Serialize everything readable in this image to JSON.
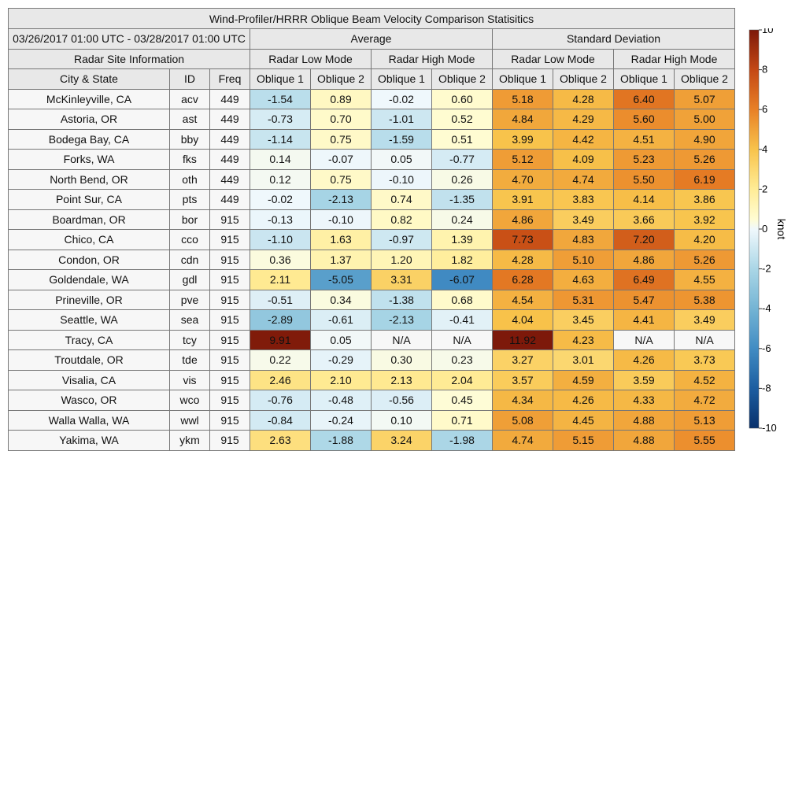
{
  "chart_data": {
    "type": "table",
    "title": "Wind-Profiler/HRRR Oblique Beam Velocity Comparison Statisitics",
    "date_range": "03/26/2017 01:00 UTC - 03/28/2017 01:00 UTC",
    "site_group_label": "Radar Site Information",
    "groups": [
      "Average",
      "Standard Deviation"
    ],
    "modes": [
      "Radar Low Mode",
      "Radar High Mode"
    ],
    "info_columns": [
      "City & State",
      "ID",
      "Freq"
    ],
    "beam_columns": [
      "Oblique 1",
      "Oblique 2"
    ],
    "colorbar": {
      "label": "knot",
      "min": -10,
      "max": 10,
      "ticks": [
        10,
        8,
        6,
        4,
        2,
        0,
        -2,
        -4,
        -6,
        -8,
        -10
      ]
    },
    "rows": [
      {
        "city": "McKinleyville, CA",
        "id": "acv",
        "freq": "449",
        "values": [
          "-1.54",
          "0.89",
          "-0.02",
          "0.60",
          "5.18",
          "4.28",
          "6.40",
          "5.07"
        ]
      },
      {
        "city": "Astoria, OR",
        "id": "ast",
        "freq": "449",
        "values": [
          "-0.73",
          "0.70",
          "-1.01",
          "0.52",
          "4.84",
          "4.29",
          "5.60",
          "5.00"
        ]
      },
      {
        "city": "Bodega Bay, CA",
        "id": "bby",
        "freq": "449",
        "values": [
          "-1.14",
          "0.75",
          "-1.59",
          "0.51",
          "3.99",
          "4.42",
          "4.51",
          "4.90"
        ]
      },
      {
        "city": "Forks, WA",
        "id": "fks",
        "freq": "449",
        "values": [
          "0.14",
          "-0.07",
          "0.05",
          "-0.77",
          "5.12",
          "4.09",
          "5.23",
          "5.26"
        ]
      },
      {
        "city": "North Bend, OR",
        "id": "oth",
        "freq": "449",
        "values": [
          "0.12",
          "0.75",
          "-0.10",
          "0.26",
          "4.70",
          "4.74",
          "5.50",
          "6.19"
        ]
      },
      {
        "city": "Point Sur, CA",
        "id": "pts",
        "freq": "449",
        "values": [
          "-0.02",
          "-2.13",
          "0.74",
          "-1.35",
          "3.91",
          "3.83",
          "4.14",
          "3.86"
        ]
      },
      {
        "city": "Boardman, OR",
        "id": "bor",
        "freq": "915",
        "values": [
          "-0.13",
          "-0.10",
          "0.82",
          "0.24",
          "4.86",
          "3.49",
          "3.66",
          "3.92"
        ]
      },
      {
        "city": "Chico, CA",
        "id": "cco",
        "freq": "915",
        "values": [
          "-1.10",
          "1.63",
          "-0.97",
          "1.39",
          "7.73",
          "4.83",
          "7.20",
          "4.20"
        ]
      },
      {
        "city": "Condon, OR",
        "id": "cdn",
        "freq": "915",
        "values": [
          "0.36",
          "1.37",
          "1.20",
          "1.82",
          "4.28",
          "5.10",
          "4.86",
          "5.26"
        ]
      },
      {
        "city": "Goldendale, WA",
        "id": "gdl",
        "freq": "915",
        "values": [
          "2.11",
          "-5.05",
          "3.31",
          "-6.07",
          "6.28",
          "4.63",
          "6.49",
          "4.55"
        ]
      },
      {
        "city": "Prineville, OR",
        "id": "pve",
        "freq": "915",
        "values": [
          "-0.51",
          "0.34",
          "-1.38",
          "0.68",
          "4.54",
          "5.31",
          "5.47",
          "5.38"
        ]
      },
      {
        "city": "Seattle, WA",
        "id": "sea",
        "freq": "915",
        "values": [
          "-2.89",
          "-0.61",
          "-2.13",
          "-0.41",
          "4.04",
          "3.45",
          "4.41",
          "3.49"
        ]
      },
      {
        "city": "Tracy, CA",
        "id": "tcy",
        "freq": "915",
        "values": [
          "9.91",
          "0.05",
          "N/A",
          "N/A",
          "11.92",
          "4.23",
          "N/A",
          "N/A"
        ]
      },
      {
        "city": "Troutdale, OR",
        "id": "tde",
        "freq": "915",
        "values": [
          "0.22",
          "-0.29",
          "0.30",
          "0.23",
          "3.27",
          "3.01",
          "4.26",
          "3.73"
        ]
      },
      {
        "city": "Visalia, CA",
        "id": "vis",
        "freq": "915",
        "values": [
          "2.46",
          "2.10",
          "2.13",
          "2.04",
          "3.57",
          "4.59",
          "3.59",
          "4.52"
        ]
      },
      {
        "city": "Wasco, OR",
        "id": "wco",
        "freq": "915",
        "values": [
          "-0.76",
          "-0.48",
          "-0.56",
          "0.45",
          "4.34",
          "4.26",
          "4.33",
          "4.72"
        ]
      },
      {
        "city": "Walla Walla, WA",
        "id": "wwl",
        "freq": "915",
        "values": [
          "-0.84",
          "-0.24",
          "0.10",
          "0.71",
          "5.08",
          "4.45",
          "4.88",
          "5.13"
        ]
      },
      {
        "city": "Yakima, WA",
        "id": "ykm",
        "freq": "915",
        "values": [
          "2.63",
          "-1.88",
          "3.24",
          "-1.98",
          "4.74",
          "5.15",
          "4.88",
          "5.55"
        ]
      }
    ]
  }
}
